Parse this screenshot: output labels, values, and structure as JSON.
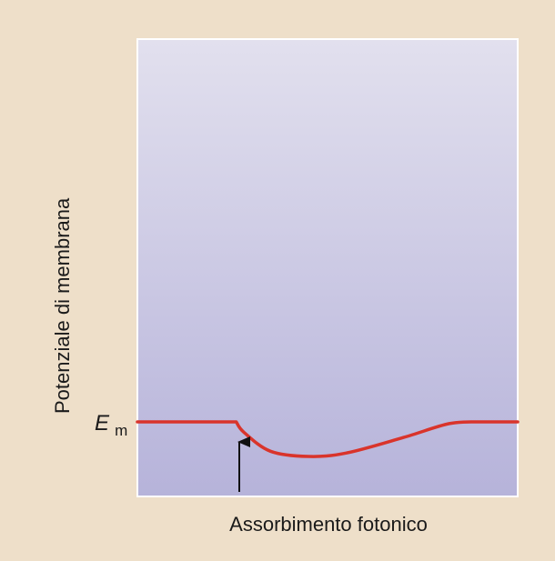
{
  "chart_data": {
    "type": "line",
    "ylabel": "Potenziale di membrana",
    "xlabel": "",
    "annotation_arrow": "Assorbimento fotonico",
    "baseline_label_main": "E",
    "baseline_label_sub": "m",
    "colors": {
      "background": "#eedfc9",
      "plot_top": "#e2e0ee",
      "plot_bottom": "#b6b3da",
      "line": "#d9342b",
      "arrow": "#111111"
    },
    "series": [
      {
        "values": [
          {
            "x": 0,
            "y": 0
          },
          {
            "x": 0.26,
            "y": 0
          },
          {
            "x": 0.28,
            "y": -0.3
          },
          {
            "x": 0.35,
            "y": -0.85
          },
          {
            "x": 0.45,
            "y": -1
          },
          {
            "x": 0.55,
            "y": -0.9
          },
          {
            "x": 0.7,
            "y": -0.45
          },
          {
            "x": 0.82,
            "y": -0.05
          },
          {
            "x": 0.9,
            "y": 0
          },
          {
            "x": 1,
            "y": 0
          }
        ]
      }
    ],
    "grid": false
  }
}
